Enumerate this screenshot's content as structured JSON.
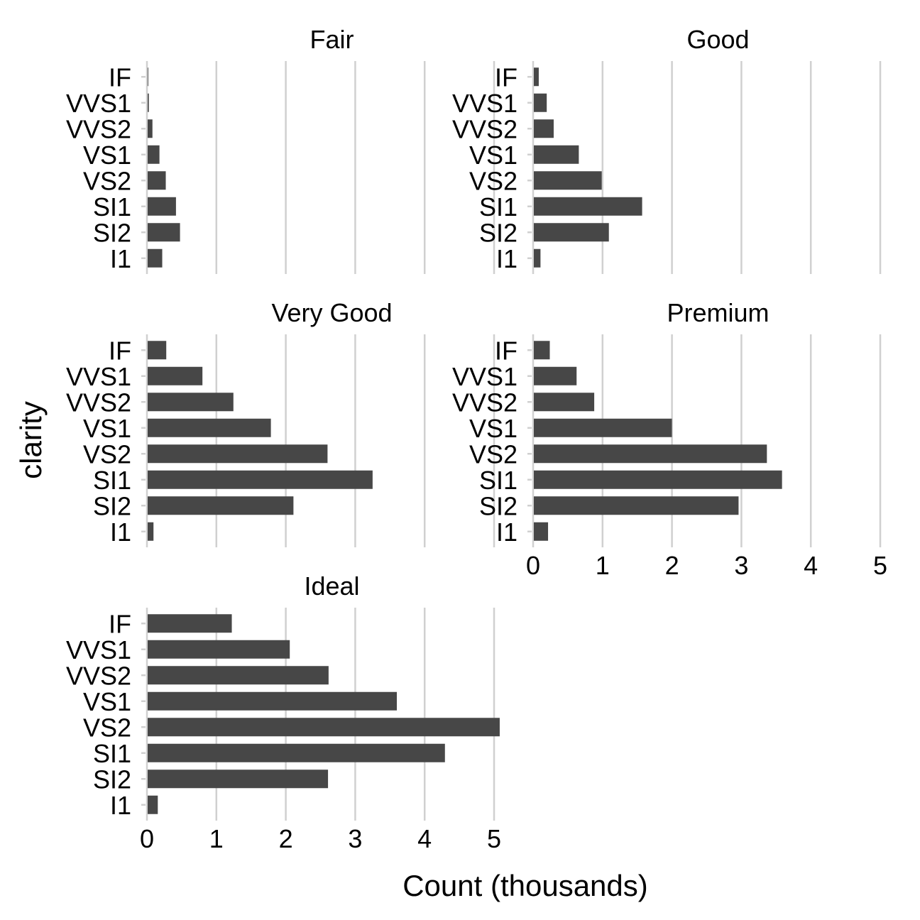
{
  "chart_data": {
    "type": "bar",
    "orientation": "horizontal",
    "facet_by": "cut",
    "xlabel": "Count (thousands)",
    "ylabel": "clarity",
    "xlim": [
      0,
      5
    ],
    "x_ticks": [
      0,
      1,
      2,
      3,
      4,
      5
    ],
    "categories": [
      "IF",
      "VVS1",
      "VVS2",
      "VS1",
      "VS2",
      "SI1",
      "SI2",
      "I1"
    ],
    "grid": "vertical major",
    "colors": {
      "bar": "#474747",
      "grid": "#d0d0d0"
    },
    "facets": [
      {
        "title": "Fair",
        "values": [
          0.009,
          0.017,
          0.069,
          0.17,
          0.261,
          0.408,
          0.466,
          0.21
        ]
      },
      {
        "title": "Good",
        "values": [
          0.071,
          0.186,
          0.286,
          0.648,
          0.978,
          1.56,
          1.081,
          0.096
        ]
      },
      {
        "title": "Very Good",
        "values": [
          0.268,
          0.789,
          1.235,
          1.775,
          2.591,
          3.24,
          2.1,
          0.084
        ]
      },
      {
        "title": "Premium",
        "values": [
          0.23,
          0.616,
          0.87,
          1.989,
          3.357,
          3.575,
          2.949,
          0.205
        ]
      },
      {
        "title": "Ideal",
        "values": [
          1.212,
          2.047,
          2.606,
          3.589,
          5.071,
          4.282,
          2.598,
          0.146
        ]
      }
    ]
  }
}
